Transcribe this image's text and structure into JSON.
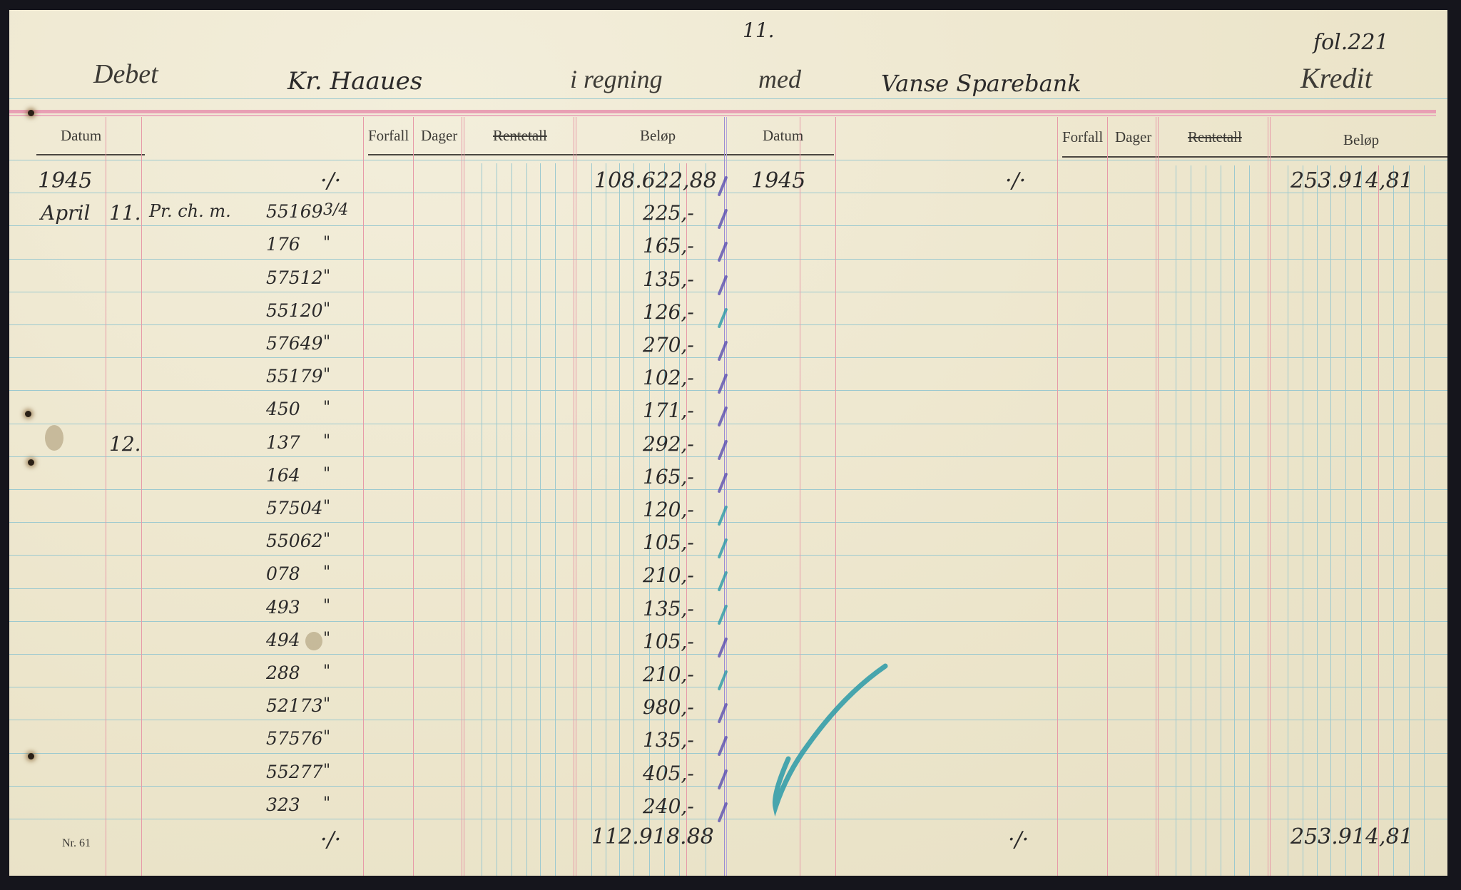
{
  "header": {
    "page_number": "11.",
    "folio": "fol.221",
    "debit_label": "Debet",
    "account_holder": "Kr. Haaues",
    "in_account_label": "i regning",
    "with_label": "med",
    "counterparty": "Vanse Sparebank",
    "credit_label": "Kredit"
  },
  "columns": {
    "left": {
      "datum": "Datum",
      "forfall": "Forfall",
      "dager": "Dager",
      "rentetall": "Rentetall",
      "belop": "Beløp"
    },
    "right": {
      "datum": "Datum",
      "forfall": "Forfall",
      "dager": "Dager",
      "rentetall": "Rentetall",
      "belop": "Beløp"
    }
  },
  "debit": {
    "opening": {
      "year": "1945",
      "mark": "·/·",
      "amount": "108.622,88"
    },
    "entries": [
      {
        "month": "April",
        "day": "11.",
        "text": "Pr. ch. m.",
        "ref": "55169",
        "note": "3/4",
        "amount": "225,-"
      },
      {
        "month": "",
        "day": "",
        "text": "",
        "ref": "176",
        "note": "\"",
        "amount": "165,-"
      },
      {
        "month": "",
        "day": "",
        "text": "",
        "ref": "57512",
        "note": "\"",
        "amount": "135,-"
      },
      {
        "month": "",
        "day": "",
        "text": "",
        "ref": "55120",
        "note": "\"",
        "amount": "126,-"
      },
      {
        "month": "",
        "day": "",
        "text": "",
        "ref": "57649",
        "note": "\"",
        "amount": "270,-"
      },
      {
        "month": "",
        "day": "",
        "text": "",
        "ref": "55179",
        "note": "\"",
        "amount": "102,-"
      },
      {
        "month": "",
        "day": "",
        "text": "",
        "ref": "450",
        "note": "\"",
        "amount": "171,-"
      },
      {
        "month": "",
        "day": "12.",
        "text": "",
        "ref": "137",
        "note": "\"",
        "amount": "292,-"
      },
      {
        "month": "",
        "day": "",
        "text": "",
        "ref": "164",
        "note": "\"",
        "amount": "165,-"
      },
      {
        "month": "",
        "day": "",
        "text": "",
        "ref": "57504",
        "note": "\"",
        "amount": "120,-"
      },
      {
        "month": "",
        "day": "",
        "text": "",
        "ref": "55062",
        "note": "\"",
        "amount": "105,-"
      },
      {
        "month": "",
        "day": "",
        "text": "",
        "ref": "078",
        "note": "\"",
        "amount": "210,-"
      },
      {
        "month": "",
        "day": "",
        "text": "",
        "ref": "493",
        "note": "\"",
        "amount": "135,-"
      },
      {
        "month": "",
        "day": "",
        "text": "",
        "ref": "494",
        "note": "\"",
        "amount": "105,-"
      },
      {
        "month": "",
        "day": "",
        "text": "",
        "ref": "288",
        "note": "\"",
        "amount": "210,-"
      },
      {
        "month": "",
        "day": "",
        "text": "",
        "ref": "52173",
        "note": "\"",
        "amount": "980,-"
      },
      {
        "month": "",
        "day": "",
        "text": "",
        "ref": "57576",
        "note": "\"",
        "amount": "135,-"
      },
      {
        "month": "",
        "day": "",
        "text": "",
        "ref": "55277",
        "note": "\"",
        "amount": "405,-"
      },
      {
        "month": "",
        "day": "",
        "text": "",
        "ref": "323",
        "note": "\"",
        "amount": "240,-"
      }
    ],
    "total": {
      "mark": "·/·",
      "amount": "112.918.88"
    }
  },
  "credit": {
    "opening": {
      "year": "1945",
      "mark": "·/·",
      "amount": "253.914,81"
    },
    "total": {
      "mark": "·/·",
      "amount": "253.914,81"
    }
  },
  "footer": {
    "form_number": "Nr. 61"
  },
  "colors": {
    "paper": "#efe9d2",
    "red_rule": "#e79aa8",
    "blue_rule": "#9cc9cf",
    "check_purple": "#5a4fb0",
    "check_teal": "#2a9aa8"
  },
  "check_mark_colors": [
    "purple",
    "purple",
    "purple",
    "purple",
    "teal",
    "purple",
    "purple",
    "purple",
    "purple",
    "purple",
    "teal",
    "teal",
    "teal",
    "teal",
    "purple",
    "teal",
    "purple",
    "purple",
    "purple",
    "purple"
  ]
}
